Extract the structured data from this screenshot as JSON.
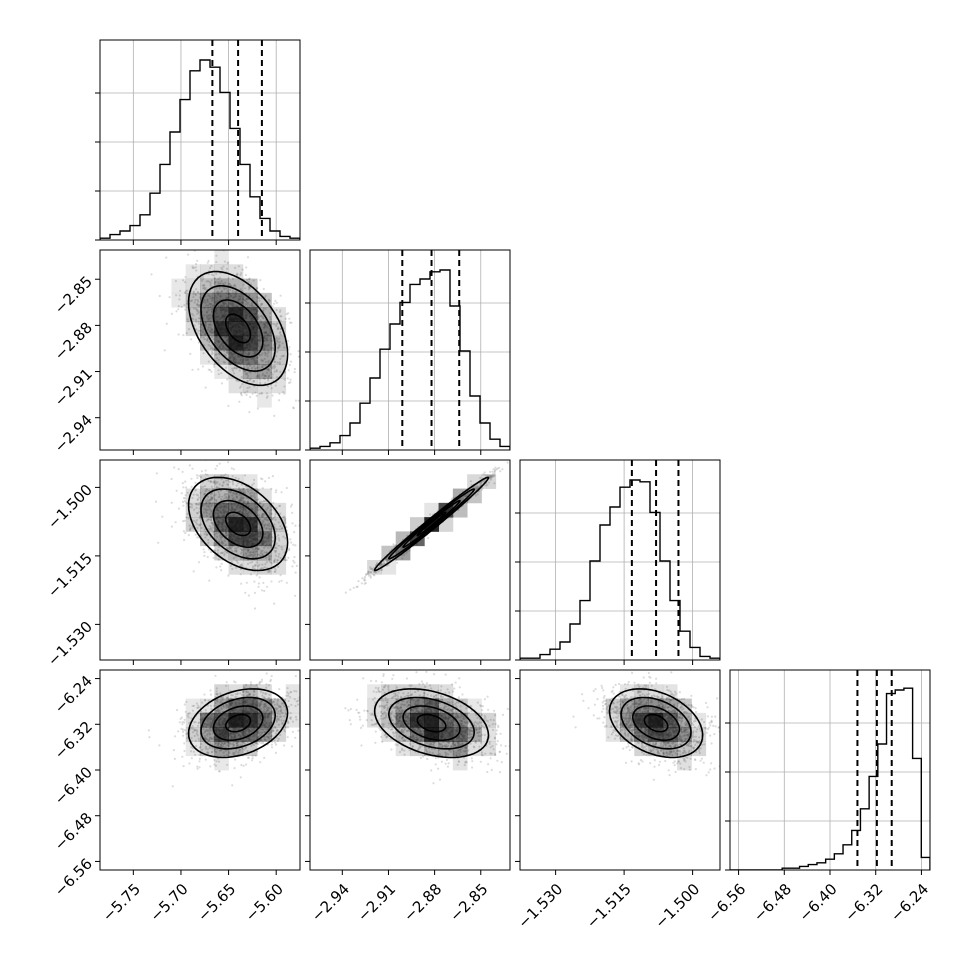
{
  "chart_data": {
    "type": "corner",
    "grid": true,
    "parameters": [
      {
        "ticks": [
          -5.75,
          -5.7,
          -5.65,
          -5.6
        ],
        "tick_labels": [
          "−5.75",
          "−5.70",
          "−5.65",
          "−5.60"
        ],
        "range": [
          -5.785,
          -5.575
        ],
        "quantiles": [
          -5.667,
          -5.64,
          -5.615
        ]
      },
      {
        "ticks": [
          -2.94,
          -2.91,
          -2.88,
          -2.85
        ],
        "tick_labels": [
          "−2.94",
          "−2.91",
          "−2.88",
          "−2.85"
        ],
        "range": [
          -2.961,
          -2.831
        ],
        "quantiles": [
          -2.901,
          -2.882,
          -2.864
        ]
      },
      {
        "ticks": [
          -1.53,
          -1.515,
          -1.5
        ],
        "tick_labels": [
          "−1.530",
          "−1.515",
          "−1.500"
        ],
        "range": [
          -1.5378,
          -1.494
        ],
        "quantiles": [
          -1.5133,
          -1.508,
          -1.5031
        ]
      },
      {
        "ticks": [
          -6.56,
          -6.48,
          -6.4,
          -6.32,
          -6.24
        ],
        "tick_labels": [
          "−6.56",
          "−6.48",
          "−6.40",
          "−6.32",
          "−6.24"
        ],
        "range": [
          -6.575,
          -6.225
        ],
        "quantiles": [
          -6.352,
          -6.318,
          -6.292
        ]
      }
    ],
    "histograms": [
      {
        "counts": [
          0.01,
          0.03,
          0.05,
          0.08,
          0.14,
          0.26,
          0.42,
          0.6,
          0.78,
          0.94,
          1.0,
          0.96,
          0.82,
          0.62,
          0.42,
          0.24,
          0.12,
          0.05,
          0.02,
          0.01
        ]
      },
      {
        "counts": [
          0.01,
          0.02,
          0.04,
          0.08,
          0.15,
          0.26,
          0.4,
          0.56,
          0.7,
          0.82,
          0.92,
          0.95,
          0.99,
          1.0,
          0.8,
          0.55,
          0.3,
          0.15,
          0.06,
          0.02
        ]
      },
      {
        "counts": [
          0.01,
          0.01,
          0.03,
          0.06,
          0.1,
          0.2,
          0.33,
          0.55,
          0.75,
          0.85,
          0.96,
          1.0,
          0.99,
          0.82,
          0.55,
          0.33,
          0.16,
          0.07,
          0.02,
          0.01
        ]
      },
      {
        "counts": [
          0.0,
          0.0,
          0.0,
          0.0,
          0.0,
          0.0,
          0.01,
          0.01,
          0.02,
          0.03,
          0.04,
          0.06,
          0.09,
          0.14,
          0.22,
          0.34,
          0.52,
          0.7,
          0.98,
          1.0,
          1.01,
          0.62,
          0.07
        ]
      }
    ],
    "pairs": [
      {
        "row": 1,
        "col": 0,
        "corr": -0.45
      },
      {
        "row": 2,
        "col": 0,
        "corr": -0.4
      },
      {
        "row": 2,
        "col": 1,
        "corr": 0.99
      },
      {
        "row": 3,
        "col": 0,
        "corr": 0.3
      },
      {
        "row": 3,
        "col": 1,
        "corr": -0.35
      },
      {
        "row": 3,
        "col": 2,
        "corr": -0.35
      }
    ]
  }
}
